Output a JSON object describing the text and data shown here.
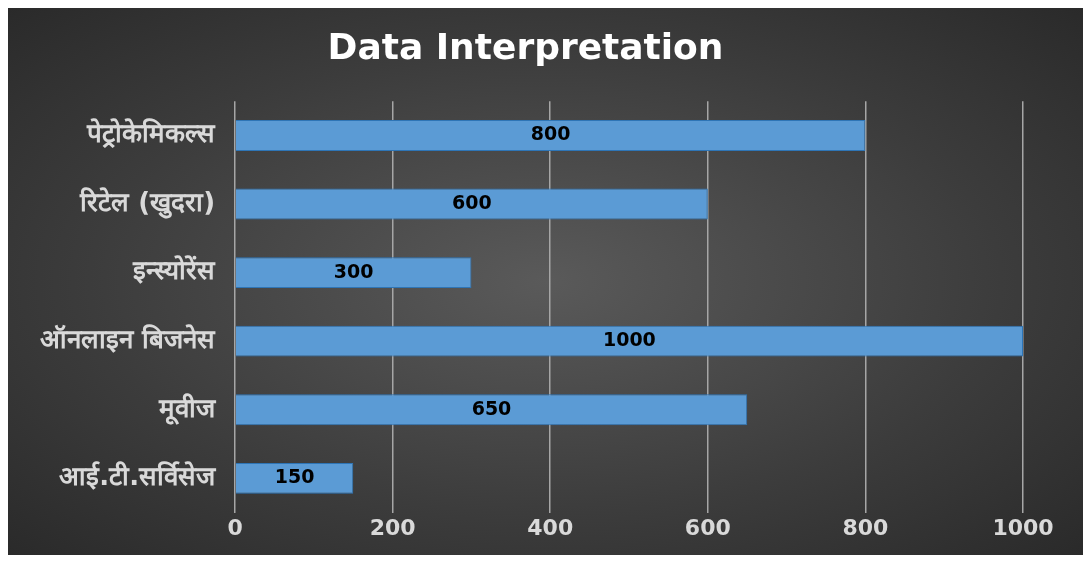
{
  "chart_data": {
    "type": "bar",
    "orientation": "horizontal",
    "title": "Data Interpretation",
    "categories": [
      "पेट्रोकेमिकल्स",
      "रिटेल (खुदरा)",
      "इन्स्योरेंस",
      "ऑनलाइन बिजनेस",
      "मूवीज",
      "आई.टी.सर्विसेज"
    ],
    "values": [
      800,
      600,
      300,
      1000,
      650,
      150
    ],
    "color": "#5b9bd5",
    "xlim": [
      0,
      1000
    ],
    "xticks": [
      0,
      200,
      400,
      600,
      800,
      1000
    ],
    "grid": "x",
    "legend": false,
    "data_labels": true
  }
}
